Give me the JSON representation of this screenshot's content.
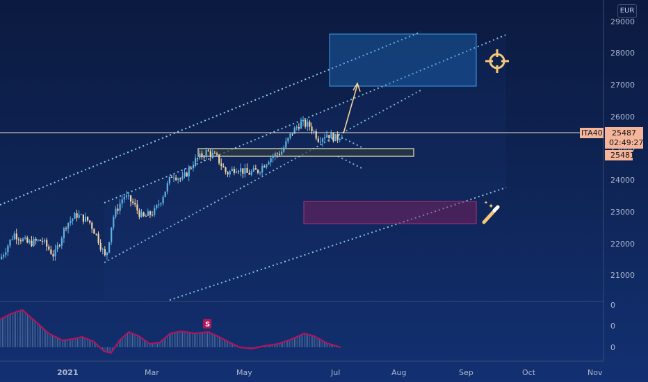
{
  "currency": "EUR",
  "symbol": "ITA40",
  "price_tag": "25487",
  "countdown": "02:49:27",
  "level_tag": "25481",
  "y_ticks": [
    "29000",
    "28000",
    "27000",
    "26000",
    "25000",
    "24000",
    "23000",
    "22000",
    "21000"
  ],
  "indicator_ticks": [
    "0",
    "0",
    "0"
  ],
  "x_ticks": [
    "2021",
    "Mar",
    "May",
    "Jul",
    "Aug",
    "Sep",
    "Oct",
    "Nov"
  ],
  "signal_label": "S",
  "colors": {
    "up": "#5fb2e6",
    "down": "#f3d3a8",
    "price_line": "#f1e3c8",
    "tag_bg": "#f4b59a",
    "target_box": "#1f74c9",
    "risk_box": "#8a1e5a",
    "osc_line": "#b0155a",
    "target_icon": "#f6c97a"
  },
  "icons": [
    "crosshair-target-icon",
    "magic-wand-icon"
  ],
  "chart_data": {
    "type": "candlestick",
    "currency": "EUR",
    "ylim": [
      20200,
      29300
    ],
    "y_ticks": [
      21000,
      22000,
      23000,
      24000,
      25000,
      26000,
      27000,
      28000,
      29000
    ],
    "last_price": 25487,
    "marked_level": 25481,
    "target_zone": [
      27000,
      28600
    ],
    "risk_zone": [
      22650,
      23350
    ],
    "projection_to": 27050
  }
}
